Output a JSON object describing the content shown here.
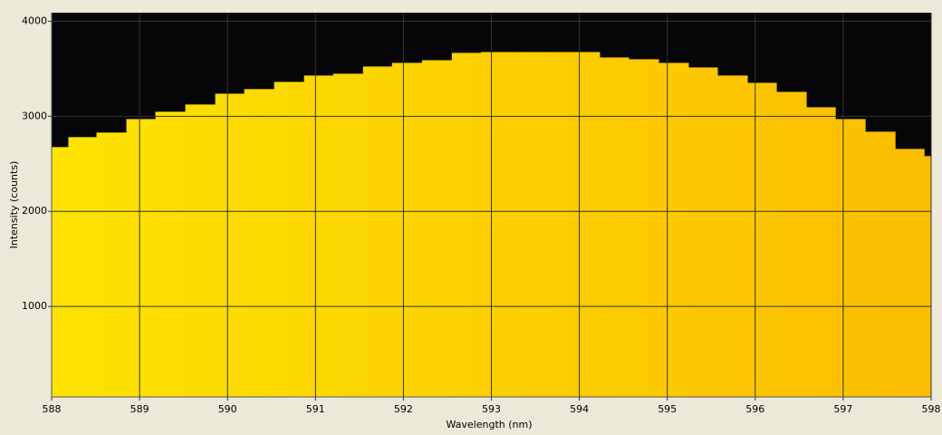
{
  "chart_data": {
    "type": "histogram",
    "x_label": "Wavelength (nm)",
    "y_label": "Intensity (counts)",
    "bins": [
      588.0,
      588.19,
      588.51,
      588.85,
      589.18,
      589.52,
      589.86,
      590.19,
      590.53,
      590.87,
      591.2,
      591.54,
      591.87,
      592.21,
      592.55,
      592.88,
      593.22,
      593.56,
      593.89,
      594.23,
      594.56,
      594.9,
      595.24,
      595.57,
      595.91,
      596.24,
      596.58,
      596.91,
      597.25,
      597.59,
      597.92,
      598.0
    ],
    "values": [
      2676,
      2781,
      2829,
      2971,
      3048,
      3124,
      3238,
      3286,
      3362,
      3429,
      3448,
      3524,
      3562,
      3590,
      3667,
      3676,
      3676,
      3676,
      3676,
      3619,
      3600,
      3562,
      3514,
      3429,
      3352,
      3257,
      3095,
      2971,
      2838,
      2657,
      2581
    ],
    "gradient": [
      "#fde300",
      "#fbbd00"
    ],
    "background": "#060608",
    "xlim": [
      588,
      598
    ],
    "xticks": [
      588,
      589,
      590,
      591,
      592,
      593,
      594,
      595,
      596,
      597,
      598
    ],
    "ylim": [
      48,
      4090
    ],
    "yticks": [
      1000,
      2000,
      3000,
      4000
    ],
    "grid": true
  }
}
